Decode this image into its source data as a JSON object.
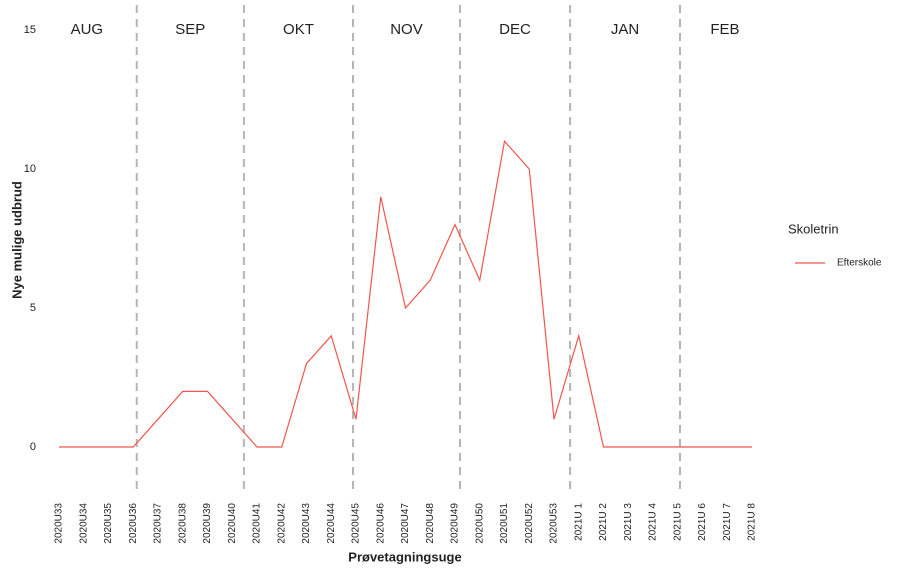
{
  "chart_data": {
    "type": "line",
    "y_label": "Nye mulige udbrud",
    "x_label": "Prøvetagningsuge",
    "legend_title": "Skoletrin",
    "legend_position": "right",
    "categories": [
      "2020U33",
      "2020U34",
      "2020U35",
      "2020U36",
      "2020U37",
      "2020U38",
      "2020U39",
      "2020U40",
      "2020U41",
      "2020U42",
      "2020U43",
      "2020U44",
      "2020U45",
      "2020U46",
      "2020U47",
      "2020U48",
      "2020U49",
      "2020U50",
      "2020U51",
      "2020U52",
      "2020U53",
      "2021U 1",
      "2021U 2",
      "2021U 3",
      "2021U 4",
      "2021U 5",
      "2021U 6",
      "2021U 7",
      "2021U 8"
    ],
    "series": [
      {
        "name": "Efterskole",
        "color": "#f0564d",
        "values": [
          0,
          0,
          0,
          0,
          1,
          2,
          2,
          1,
          0,
          0,
          3,
          4,
          1,
          9,
          5,
          6,
          8,
          6,
          11,
          10,
          1,
          4,
          0,
          0,
          0,
          0,
          0,
          0,
          0
        ]
      }
    ],
    "ylim": [
      0,
      15
    ],
    "yticks": [
      0,
      5,
      10,
      15
    ],
    "grid": false,
    "months": [
      "AUG",
      "SEP",
      "OKT",
      "NOV",
      "DEC",
      "JAN",
      "FEB"
    ],
    "month_boundaries": [
      3.14,
      7.47,
      11.88,
      16.2,
      20.65,
      25.09
    ]
  }
}
